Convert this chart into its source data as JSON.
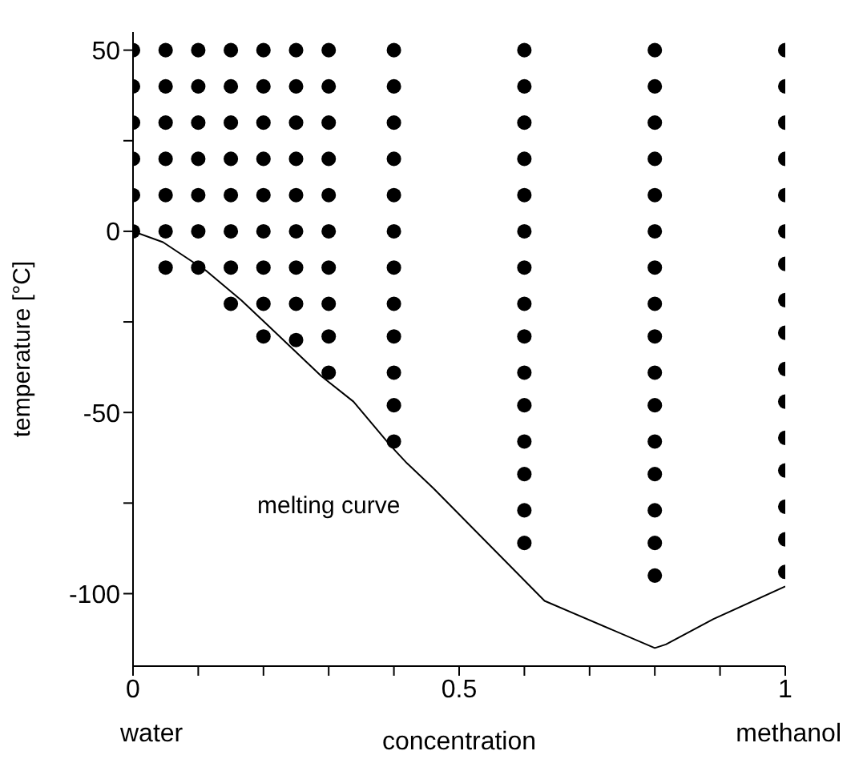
{
  "chart_data": {
    "type": "scatter",
    "xlabel": "concentration",
    "ylabel": "temperature [°C]",
    "xlim": [
      0,
      1
    ],
    "xticks": [
      0,
      {
        "value": 0.1,
        "label": null
      },
      {
        "value": 0.2,
        "label": null
      },
      {
        "value": 0.3,
        "label": null
      },
      {
        "value": 0.4,
        "label": null
      },
      {
        "value": 0.5,
        "label": "0.5"
      },
      {
        "value": 0.6,
        "label": null
      },
      {
        "value": 0.7,
        "label": null
      },
      {
        "value": 0.8,
        "label": null
      },
      {
        "value": 0.9,
        "label": null
      },
      1
    ],
    "ylim": [
      -120,
      55
    ],
    "yticks": [
      -100,
      {
        "value": -75,
        "label": null
      },
      -50,
      {
        "value": -25,
        "label": null
      },
      0,
      {
        "value": 25,
        "label": null
      },
      50
    ],
    "annotations": [
      "melting curve",
      "water",
      "methanol"
    ],
    "series": [
      {
        "type": "scatter",
        "marker": "circle",
        "color": "#000000",
        "x": [
          0,
          0,
          0,
          0,
          0,
          0,
          0.05,
          0.05,
          0.05,
          0.05,
          0.05,
          0.05,
          0.05,
          0.1,
          0.1,
          0.1,
          0.1,
          0.1,
          0.1,
          0.1,
          0.15,
          0.15,
          0.15,
          0.15,
          0.15,
          0.15,
          0.15,
          0.15,
          0.2,
          0.2,
          0.2,
          0.2,
          0.2,
          0.2,
          0.2,
          0.2,
          0.2,
          0.25,
          0.25,
          0.25,
          0.25,
          0.25,
          0.25,
          0.25,
          0.25,
          0.25,
          0.3,
          0.3,
          0.3,
          0.3,
          0.3,
          0.3,
          0.3,
          0.3,
          0.3,
          0.3,
          0.4,
          0.4,
          0.4,
          0.4,
          0.4,
          0.4,
          0.4,
          0.4,
          0.4,
          0.4,
          0.4,
          0.4,
          0.6,
          0.6,
          0.6,
          0.6,
          0.6,
          0.6,
          0.6,
          0.6,
          0.6,
          0.6,
          0.6,
          0.6,
          0.6,
          0.6,
          0.6,
          0.8,
          0.8,
          0.8,
          0.8,
          0.8,
          0.8,
          0.8,
          0.8,
          0.8,
          0.8,
          0.8,
          0.8,
          0.8,
          0.8,
          0.8,
          0.8,
          1,
          1,
          1,
          1,
          1,
          1,
          1,
          1,
          1,
          1,
          1,
          1,
          1,
          1,
          1,
          1
        ],
        "values": [
          50,
          40,
          30,
          20,
          10,
          0,
          50,
          40,
          30,
          20,
          10,
          0,
          -10,
          50,
          40,
          30,
          20,
          10,
          0,
          -10,
          50,
          40,
          30,
          20,
          10,
          0,
          -10,
          -20,
          50,
          40,
          30,
          20,
          10,
          0,
          -10,
          -20,
          -29,
          50,
          40,
          30,
          20,
          10,
          0,
          -10,
          -20,
          -30,
          50,
          40,
          30,
          20,
          10,
          0,
          -10,
          -20,
          -29,
          -39,
          50,
          40,
          30,
          20,
          10,
          0,
          -10,
          -20,
          -29,
          -39,
          -48,
          -58,
          50,
          40,
          30,
          20,
          10,
          0,
          -10,
          -20,
          -29,
          -39,
          -48,
          -58,
          -67,
          -77,
          -86,
          50,
          40,
          30,
          20,
          10,
          0,
          -10,
          -20,
          -29,
          -39,
          -48,
          -58,
          -67,
          -77,
          -86,
          -95,
          50,
          40,
          30,
          20,
          10,
          0,
          -9,
          -19,
          -28,
          -38,
          -47,
          -57,
          -66,
          -76,
          -85,
          -94
        ]
      },
      {
        "type": "line",
        "marker": "none",
        "line_style": "solid",
        "color": "#000000",
        "x": [
          0,
          0.046,
          0.113,
          0.166,
          0.207,
          0.289,
          0.338,
          0.394,
          0.42,
          0.461,
          0.631,
          0.8,
          0.817,
          0.89,
          1
        ],
        "values": [
          0,
          -3,
          -11,
          -19,
          -26,
          -40,
          -47,
          -59,
          -64,
          -71,
          -102,
          -115,
          -114,
          -107,
          -98
        ]
      }
    ]
  }
}
